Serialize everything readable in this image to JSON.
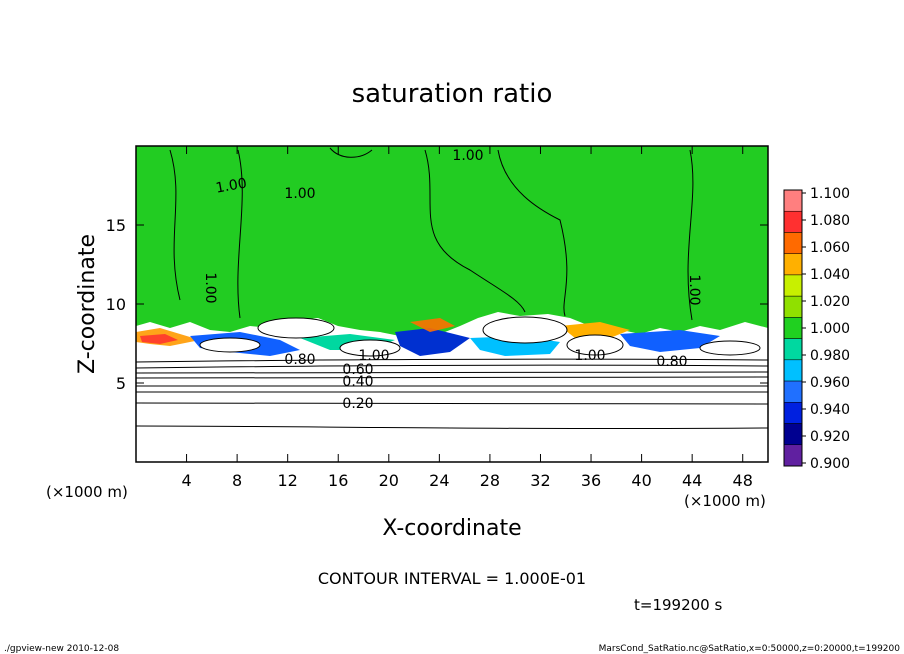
{
  "chart_data": {
    "type": "heatmap",
    "title": "saturation ratio",
    "xlabel": "X-coordinate",
    "ylabel": "Z-coordinate",
    "x_unit": "(×1000 m)",
    "y_unit": "(×1000 m)",
    "xlim": [
      0,
      50
    ],
    "ylim": [
      0,
      20
    ],
    "x_ticks": [
      4,
      8,
      12,
      16,
      20,
      24,
      28,
      32,
      36,
      40,
      44,
      48
    ],
    "y_ticks": [
      5,
      10,
      15
    ],
    "contour_labels": [
      "1.00",
      "1.00",
      "1.00",
      "1.00",
      "1.00",
      "1.00",
      "1.00",
      "0.80",
      "0.80",
      "0.60",
      "0.40",
      "0.20"
    ],
    "contour_interval_text": "CONTOUR INTERVAL = 1.000E-01",
    "colorbar": {
      "labels": [
        "1.100",
        "1.080",
        "1.060",
        "1.040",
        "1.020",
        "1.000",
        "0.980",
        "0.960",
        "0.940",
        "0.920",
        "0.900"
      ],
      "colors": [
        "#ff7f7f",
        "#ff3030",
        "#ff6a00",
        "#ffb000",
        "#c8f000",
        "#90e000",
        "#20d020",
        "#00d8a0",
        "#00c0ff",
        "#2070ff",
        "#0020e0",
        "#000090",
        "#6020a0"
      ]
    },
    "time_label": "t=199200 s"
  },
  "footer": {
    "left": "./gpview-new 2010-12-08",
    "right": "MarsCond_SatRatio.nc@SatRatio,x=0:50000,z=0:20000,t=199200"
  }
}
